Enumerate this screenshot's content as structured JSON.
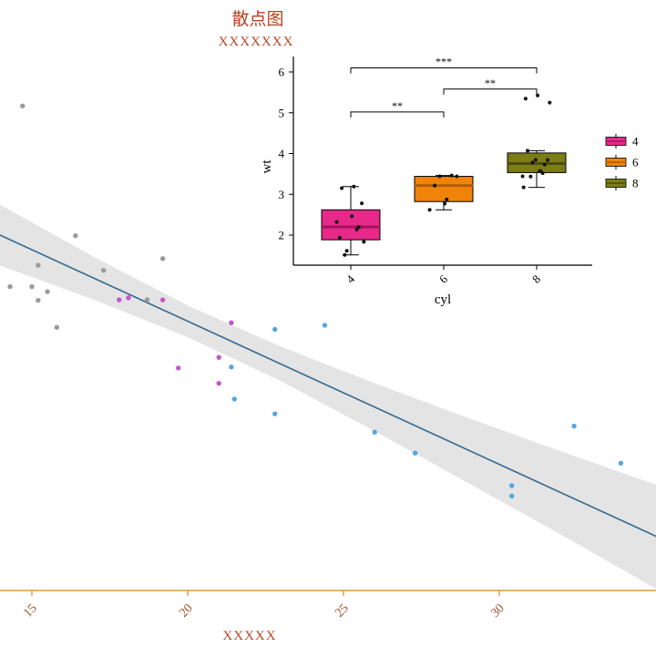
{
  "colors": {
    "title_text": "#b5431f",
    "axis_line": "#dd9a3d",
    "axis_tick_text": "#a0522d",
    "trend_line": "#33688e",
    "confidence_band": "#e4e4e4",
    "scatter": {
      "4": "#55a7e0",
      "6": "#c653cf",
      "8": "#9a9a9a"
    },
    "box_fill": {
      "4": "#e7298a",
      "6": "#f0830a",
      "8": "#7d7d17"
    },
    "box_median": {
      "4": "#a5125f",
      "6": "#b35c05",
      "8": "#4c4c0e"
    },
    "inset_ink": "#000000"
  },
  "chart_data": [
    {
      "type": "scatter",
      "title": "散点图",
      "subtitle": "XXXXXXX",
      "xlabel": "XXXXX",
      "ylabel": "",
      "xticks": [
        15,
        20,
        25,
        30
      ],
      "xlim": [
        13.95,
        35.15
      ],
      "ylim": [
        0.59,
        6.39
      ],
      "grid": false,
      "series": [
        {
          "name": "4",
          "points": [
            [
              22.8,
              2.32
            ],
            [
              24.4,
              3.19
            ],
            [
              22.8,
              3.15
            ],
            [
              32.4,
              2.2
            ],
            [
              30.4,
              1.615
            ],
            [
              33.9,
              1.835
            ],
            [
              21.5,
              2.465
            ],
            [
              27.3,
              1.935
            ],
            [
              26.0,
              2.14
            ],
            [
              30.4,
              1.513
            ],
            [
              21.4,
              2.78
            ]
          ]
        },
        {
          "name": "6",
          "points": [
            [
              21.0,
              2.62
            ],
            [
              21.0,
              2.875
            ],
            [
              21.4,
              3.215
            ],
            [
              18.1,
              3.46
            ],
            [
              19.2,
              3.44
            ],
            [
              17.8,
              3.44
            ],
            [
              19.7,
              2.77
            ]
          ]
        },
        {
          "name": "8",
          "points": [
            [
              18.7,
              3.44
            ],
            [
              14.3,
              3.57
            ],
            [
              16.4,
              4.07
            ],
            [
              17.3,
              3.73
            ],
            [
              15.2,
              3.78
            ],
            [
              14.7,
              5.345
            ],
            [
              15.5,
              3.52
            ],
            [
              15.2,
              3.435
            ],
            [
              19.2,
              3.845
            ],
            [
              15.8,
              3.17
            ],
            [
              15.0,
              3.57
            ]
          ]
        }
      ],
      "trend_line": {
        "x": [
          13.95,
          35.15
        ],
        "y": [
          4.08,
          1.1
        ]
      },
      "confidence_band": [
        [
          13.95,
          3.78,
          4.38
        ],
        [
          17.0,
          3.44,
          3.86
        ],
        [
          20.1,
          3.06,
          3.37
        ],
        [
          23.0,
          2.64,
          2.98
        ],
        [
          26.0,
          2.15,
          2.62
        ],
        [
          29.0,
          1.64,
          2.28
        ],
        [
          32.0,
          1.13,
          1.95
        ],
        [
          35.15,
          0.58,
          1.61
        ]
      ]
    },
    {
      "type": "box",
      "xlabel": "cyl",
      "ylabel": "wt",
      "categories": [
        "4",
        "6",
        "8"
      ],
      "yticks": [
        2,
        3,
        4,
        5,
        6
      ],
      "ylim": [
        1.26,
        6.42
      ],
      "legend_position": "right",
      "boxes": [
        {
          "group": "4",
          "min": 1.513,
          "q1": 1.885,
          "median": 2.2,
          "q3": 2.62,
          "max": 3.19
        },
        {
          "group": "6",
          "min": 2.62,
          "q1": 2.822,
          "median": 3.215,
          "q3": 3.44,
          "max": 3.46
        },
        {
          "group": "8",
          "min": 3.17,
          "q1": 3.533,
          "median": 3.755,
          "q3": 4.014,
          "max": 4.07
        }
      ],
      "jitter": {
        "4": [
          2.32,
          3.19,
          3.15,
          2.2,
          1.615,
          1.835,
          2.465,
          1.935,
          2.14,
          1.513,
          2.78
        ],
        "6": [
          2.62,
          2.875,
          3.215,
          3.46,
          3.44,
          3.44,
          2.77
        ],
        "8": [
          3.44,
          3.57,
          4.07,
          3.73,
          3.78,
          5.25,
          5.424,
          5.345,
          3.52,
          3.435,
          3.84,
          3.845,
          3.17,
          3.57
        ]
      },
      "significance": [
        {
          "groups": [
            "4",
            "6"
          ],
          "label": "**",
          "y": 5.02
        },
        {
          "groups": [
            "6",
            "8"
          ],
          "label": "**",
          "y": 5.58
        },
        {
          "groups": [
            "4",
            "8"
          ],
          "label": "***",
          "y": 6.1
        }
      ],
      "legend": {
        "items": [
          "4",
          "6",
          "8"
        ]
      }
    }
  ]
}
